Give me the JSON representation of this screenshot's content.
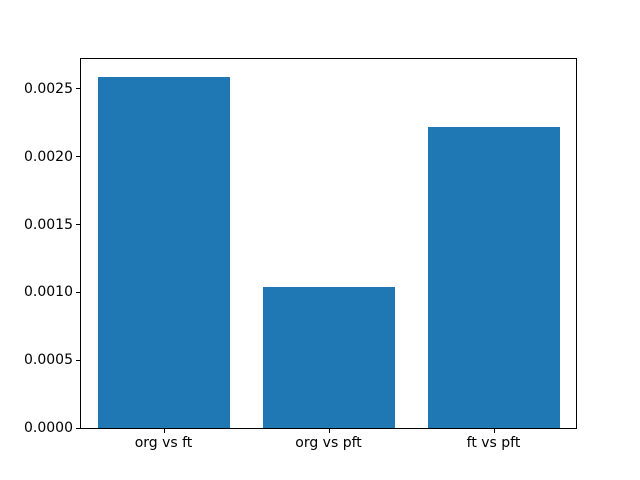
{
  "figure": {
    "background_color": "#ffffff",
    "bar_color": "#1f77b4",
    "axis_color": "#000000"
  },
  "chart_data": {
    "type": "bar",
    "categories": [
      "org vs ft",
      "org vs pft",
      "ft vs pft"
    ],
    "values": [
      0.00259,
      0.00104,
      0.00222
    ],
    "title": "",
    "xlabel": "",
    "ylabel": "",
    "ylim": [
      0,
      0.00272
    ],
    "xlim": [
      -0.5,
      2.5
    ],
    "yticks": [
      0.0,
      0.0005,
      0.001,
      0.0015,
      0.002,
      0.0025
    ],
    "ytick_labels": [
      "0.0000",
      "0.0005",
      "0.0010",
      "0.0015",
      "0.0020",
      "0.0025"
    ],
    "bar_width_fraction": 0.8,
    "grid": false,
    "legend_position": "none"
  }
}
